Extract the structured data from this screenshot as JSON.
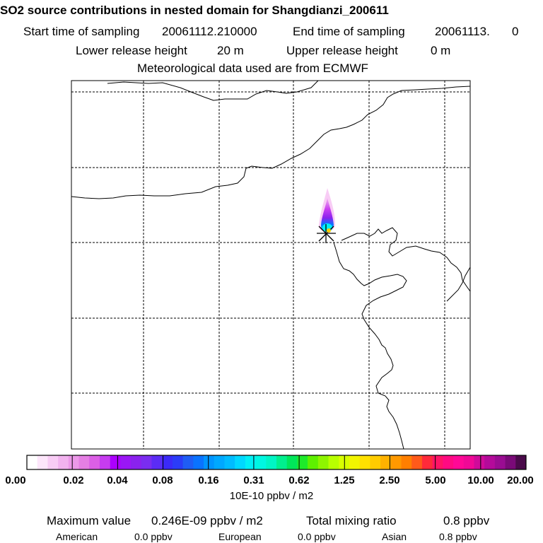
{
  "chart_data": {
    "type": "heatmap",
    "title": "SO2 source contributions in nested domain for Shangdianzi_200611",
    "start_label": "Start time of sampling",
    "start_value": "20061112.210000",
    "end_label": "End time of sampling",
    "end_value": "20061113.",
    "end_suffix": "0",
    "lower_label": "Lower release height",
    "lower_value": "20 m",
    "upper_label": "Upper release height",
    "upper_value": "0 m",
    "met_label": "Meteorological data used are from ECMWF",
    "colorbar": {
      "ticks": [
        "0.00",
        "0.02",
        "0.04",
        "0.08",
        "0.16",
        "0.31",
        "0.62",
        "1.25",
        "2.50",
        "5.00",
        "10.00",
        "20.00"
      ],
      "unit_label": "10E-10 ppbv / m2",
      "colors": [
        "#ffffff",
        "#fde6fb",
        "#f8ccf5",
        "#f2b3ef",
        "#ec99e9",
        "#e57fe4",
        "#dc5fe6",
        "#c63cf0",
        "#ac00ff",
        "#9a17f5",
        "#8a22ee",
        "#7a2df0",
        "#5b2cf5",
        "#3b2af8",
        "#2b3cf8",
        "#1f5df5",
        "#0a73ff",
        "#0094ff",
        "#00a8ff",
        "#00bcff",
        "#00d8ff",
        "#00f0f5",
        "#00f7e2",
        "#00f5c5",
        "#00ef8e",
        "#00e65a",
        "#1eea2a",
        "#5ef000",
        "#8ef500",
        "#b8ff00",
        "#d8ff00",
        "#f2f500",
        "#ffe100",
        "#ffcc00",
        "#ffb200",
        "#ff9900",
        "#ff7f00",
        "#ff5a1a",
        "#ff2a3a",
        "#ff1466",
        "#ff0a82",
        "#ff0896",
        "#f00896",
        "#d00a9a",
        "#b40a9a",
        "#9a0c92",
        "#7a0a78",
        "#4a0a4a"
      ]
    },
    "max_label": "Maximum value",
    "max_value": "0.246E-09 ppbv / m2",
    "total_label": "Total mixing ratio",
    "total_value": "0.8 ppbv",
    "contributions": [
      {
        "region": "American",
        "value": "0.0 ppbv"
      },
      {
        "region": "European",
        "value": "0.0 ppbv"
      },
      {
        "region": "Asian",
        "value": "0.8 ppbv"
      }
    ]
  }
}
